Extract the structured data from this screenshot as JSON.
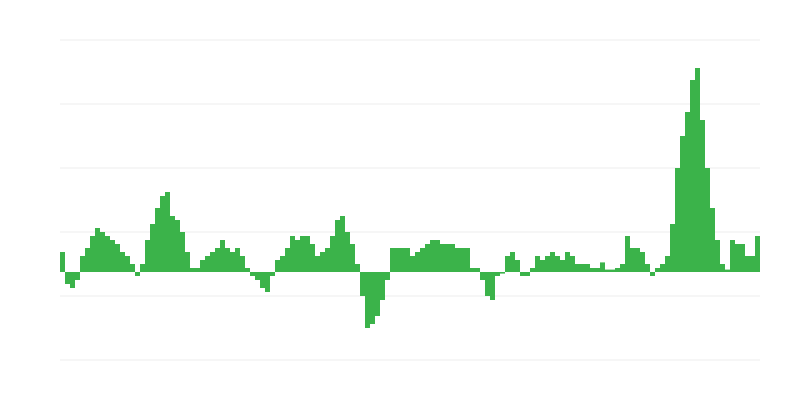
{
  "chart_data": {
    "type": "bar",
    "color": "#3bb34a",
    "grid": true,
    "ylim": [
      -11,
      29
    ],
    "yticks": [
      -11,
      -3,
      5,
      13,
      21,
      29
    ],
    "values": [
      2.5,
      -1.5,
      -2,
      -1,
      2,
      3,
      4.5,
      5.5,
      5,
      4.5,
      4,
      3.5,
      2.5,
      2,
      1,
      -0.5,
      1,
      4,
      6,
      8,
      9.5,
      10,
      7,
      6.5,
      5,
      2.5,
      0.5,
      0.5,
      1.5,
      2,
      2.5,
      3,
      4,
      3,
      2.5,
      3,
      2,
      0.5,
      -0.5,
      -1,
      -2,
      -2.5,
      -0.5,
      1.5,
      2,
      3,
      4.5,
      4,
      4.5,
      4.5,
      3.5,
      2,
      2.5,
      3,
      4.5,
      6.5,
      7,
      5,
      3.5,
      1,
      -3,
      -7,
      -6.5,
      -5.5,
      -3.5,
      -1,
      3,
      3,
      3,
      3,
      2,
      2.5,
      3,
      3.5,
      4,
      4,
      3.5,
      3.5,
      3.5,
      3,
      3,
      3,
      0.5,
      0.5,
      -1,
      -3,
      -3.5,
      -0.5,
      -0.2,
      2,
      2.5,
      1.5,
      -0.5,
      -0.5,
      0.5,
      2,
      1.5,
      2,
      2.5,
      2,
      1.5,
      2.5,
      2,
      1,
      1,
      1,
      0.5,
      0.5,
      1.2,
      0.3,
      0.3,
      0.5,
      1,
      4.5,
      3,
      3,
      2.5,
      1,
      -0.5,
      0.5,
      1,
      2,
      6,
      13,
      17,
      20,
      24,
      25.5,
      19,
      13,
      8,
      4,
      1,
      0.3,
      4,
      3.5,
      3.5,
      2,
      2,
      4.5
    ]
  }
}
